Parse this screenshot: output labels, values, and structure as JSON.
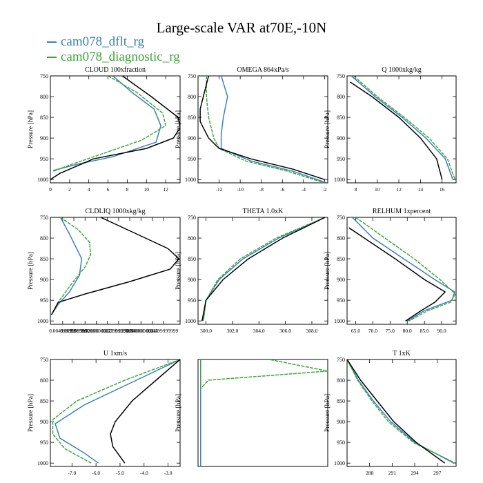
{
  "title": "Large-scale VAR at70E,-10N",
  "legend": [
    {
      "name": "cam078_dflt_rg",
      "color": "#3b7fb8"
    },
    {
      "name": "cam078_diagnostic_rg",
      "color": "#3aa83a"
    }
  ],
  "ref_color": "#000000",
  "chart_data": [
    {
      "type": "line",
      "title": "CLOUD  100xfraction",
      "ylabel": "Pressure [hPa]",
      "xlim": [
        0,
        13.5
      ],
      "ylim": [
        750,
        1008
      ],
      "xticks": [
        0,
        2,
        4,
        6,
        8,
        10,
        12
      ],
      "xtick_labels": [
        "0",
        "2",
        "4",
        "6",
        "8",
        "10",
        "12"
      ],
      "yticks": [
        750,
        800,
        850,
        900,
        950,
        1000
      ],
      "series": [
        {
          "name": "cam078_dflt_rg",
          "points": [
            [
              6.5,
              750
            ],
            [
              8.5,
              790
            ],
            [
              10.8,
              830
            ],
            [
              11.5,
              870
            ],
            [
              11.0,
              910
            ],
            [
              6.5,
              945
            ],
            [
              3.0,
              962
            ],
            [
              0.3,
              978
            ]
          ]
        },
        {
          "name": "cam078_diagnostic_rg",
          "points": [
            [
              6.0,
              750
            ],
            [
              9.0,
              790
            ],
            [
              11.7,
              840
            ],
            [
              12.0,
              870
            ],
            [
              9.5,
              905
            ],
            [
              4.5,
              945
            ],
            [
              2.0,
              965
            ],
            [
              0.3,
              980
            ]
          ]
        },
        {
          "name": "reference",
          "points": [
            [
              7.5,
              750
            ],
            [
              10.5,
              800
            ],
            [
              13.3,
              850
            ],
            [
              13.5,
              875
            ],
            [
              12.8,
              900
            ],
            [
              10.0,
              925
            ],
            [
              4.5,
              950
            ],
            [
              1.0,
              985
            ],
            [
              0.0,
              1000
            ]
          ]
        }
      ]
    },
    {
      "type": "line",
      "title": "OMEGA  864xPa/s",
      "ylabel": "Pressure [hPa]",
      "xlim": [
        -14,
        -1.7
      ],
      "ylim": [
        750,
        1008
      ],
      "xticks": [
        -12,
        -10,
        -8,
        -6,
        -4,
        -2
      ],
      "xtick_labels": [
        "-12",
        "-10",
        "-8",
        "-6",
        "-4",
        "-2"
      ],
      "yticks": [
        750,
        800,
        850,
        900,
        950,
        1000
      ],
      "series": [
        {
          "name": "cam078_dflt_rg",
          "points": [
            [
              -11.8,
              750
            ],
            [
              -11.2,
              800
            ],
            [
              -11.6,
              850
            ],
            [
              -11.8,
              890
            ],
            [
              -11.8,
              925
            ],
            [
              -9.0,
              955
            ],
            [
              -5.0,
              980
            ],
            [
              -1.8,
              1008
            ]
          ]
        },
        {
          "name": "cam078_diagnostic_rg",
          "points": [
            [
              -13.2,
              750
            ],
            [
              -13.2,
              800
            ],
            [
              -13.0,
              850
            ],
            [
              -12.5,
              900
            ],
            [
              -12.0,
              925
            ],
            [
              -9.5,
              955
            ],
            [
              -5.5,
              980
            ],
            [
              -2.0,
              1008
            ]
          ]
        },
        {
          "name": "reference",
          "points": [
            [
              -13.0,
              750
            ],
            [
              -13.8,
              830
            ],
            [
              -13.8,
              860
            ],
            [
              -13.0,
              900
            ],
            [
              -12.0,
              925
            ],
            [
              -9.0,
              950
            ],
            [
              -5.0,
              975
            ],
            [
              -2.0,
              1000
            ]
          ]
        }
      ]
    },
    {
      "type": "line",
      "title": "Q  1000xkg/kg",
      "ylabel": "Pressure [hPa]",
      "xlim": [
        7.2,
        17.3
      ],
      "ylim": [
        750,
        1008
      ],
      "xticks": [
        8,
        10,
        12,
        14,
        16
      ],
      "xtick_labels": [
        "8",
        "10",
        "12",
        "14",
        "16"
      ],
      "yticks": [
        750,
        800,
        850,
        900,
        950,
        1000
      ],
      "series": [
        {
          "name": "cam078_dflt_rg",
          "points": [
            [
              7.6,
              750
            ],
            [
              9.8,
              800
            ],
            [
              12.3,
              850
            ],
            [
              14.5,
              900
            ],
            [
              16.3,
              950
            ],
            [
              17.0,
              1000
            ]
          ]
        },
        {
          "name": "cam078_diagnostic_rg",
          "points": [
            [
              7.8,
              750
            ],
            [
              10.0,
              800
            ],
            [
              12.5,
              850
            ],
            [
              14.8,
              900
            ],
            [
              16.5,
              950
            ],
            [
              17.2,
              1000
            ]
          ]
        },
        {
          "name": "reference",
          "points": [
            [
              7.5,
              765
            ],
            [
              9.5,
              800
            ],
            [
              12.0,
              850
            ],
            [
              14.0,
              900
            ],
            [
              15.5,
              950
            ],
            [
              16.0,
              1000
            ]
          ]
        }
      ]
    },
    {
      "type": "line",
      "title": "CLDLIQ  1000xkg/kg",
      "ylabel": "Pressure [hPa]",
      "xlim": [
        -0.0005,
        0.0575
      ],
      "ylim": [
        750,
        1008
      ],
      "xticks": [
        0.005,
        0.01,
        0.015,
        0.02,
        0.025,
        0.03,
        0.035,
        0.04,
        0.045,
        0.05
      ],
      "xtick_labels": [
        "0.004999999",
        "0.009999999",
        "0.0150000001",
        "0.0200000001",
        "0.025",
        "0.0299999999",
        "0.0350000001",
        "0.0400000001",
        "0.045",
        "0.0499999999"
      ],
      "yticks": [
        750,
        800,
        850,
        900,
        950,
        1000
      ],
      "series": [
        {
          "name": "cam078_dflt_rg",
          "points": [
            [
              0.004,
              750
            ],
            [
              0.008,
              790
            ],
            [
              0.0135,
              850
            ],
            [
              0.0125,
              890
            ],
            [
              0.008,
              930
            ],
            [
              0.003,
              960
            ],
            [
              0.0,
              985
            ]
          ]
        },
        {
          "name": "cam078_diagnostic_rg",
          "points": [
            [
              0.004,
              750
            ],
            [
              0.012,
              780
            ],
            [
              0.017,
              810
            ],
            [
              0.0175,
              840
            ],
            [
              0.015,
              870
            ],
            [
              0.009,
              910
            ],
            [
              0.003,
              955
            ],
            [
              0.0,
              985
            ]
          ]
        },
        {
          "name": "reference",
          "points": [
            [
              0.022,
              750
            ],
            [
              0.038,
              790
            ],
            [
              0.052,
              825
            ],
            [
              0.057,
              850
            ],
            [
              0.053,
              875
            ],
            [
              0.035,
              905
            ],
            [
              0.015,
              935
            ],
            [
              0.003,
              955
            ],
            [
              0.0,
              985
            ]
          ]
        }
      ]
    },
    {
      "type": "line",
      "title": "THETA  1.0xK",
      "ylabel": "Pressure [hPa]",
      "xlim": [
        299.4,
        309.2
      ],
      "ylim": [
        750,
        1008
      ],
      "xticks": [
        300,
        302,
        304,
        306,
        308
      ],
      "xtick_labels": [
        "300.0",
        "302.0",
        "304.0",
        "306.0",
        "308.0"
      ],
      "yticks": [
        750,
        800,
        850,
        900,
        950,
        1000
      ],
      "series": [
        {
          "name": "cam078_dflt_rg",
          "points": [
            [
              309.0,
              750
            ],
            [
              305.5,
              800
            ],
            [
              302.8,
              850
            ],
            [
              301.0,
              900
            ],
            [
              300.0,
              950
            ],
            [
              299.8,
              1000
            ]
          ]
        },
        {
          "name": "cam078_diagnostic_rg",
          "points": [
            [
              309.0,
              750
            ],
            [
              305.3,
              800
            ],
            [
              302.6,
              850
            ],
            [
              300.9,
              900
            ],
            [
              300.0,
              950
            ],
            [
              299.8,
              1000
            ]
          ]
        },
        {
          "name": "reference",
          "points": [
            [
              309.0,
              750
            ],
            [
              305.8,
              800
            ],
            [
              303.2,
              850
            ],
            [
              301.3,
              900
            ],
            [
              300.0,
              950
            ],
            [
              299.7,
              1000
            ]
          ]
        }
      ]
    },
    {
      "type": "line",
      "title": "RELHUM  1xpercent",
      "ylabel": "Pressure [hPa]",
      "xlim": [
        62.5,
        94.2
      ],
      "ylim": [
        750,
        1008
      ],
      "xticks": [
        65,
        70,
        75,
        80,
        85,
        90
      ],
      "xtick_labels": [
        "65.0",
        "70.0",
        "75.0",
        "80.0",
        "85.0",
        "90.0"
      ],
      "yticks": [
        750,
        800,
        850,
        900,
        950,
        1000
      ],
      "series": [
        {
          "name": "cam078_dflt_rg",
          "points": [
            [
              64.0,
              750
            ],
            [
              70.0,
              800
            ],
            [
              79.0,
              850
            ],
            [
              88.0,
              900
            ],
            [
              93.8,
              930
            ],
            [
              93.0,
              950
            ],
            [
              85.0,
              975
            ],
            [
              80.0,
              1000
            ]
          ]
        },
        {
          "name": "cam078_diagnostic_rg",
          "points": [
            [
              65.0,
              750
            ],
            [
              73.5,
              800
            ],
            [
              82.0,
              850
            ],
            [
              89.5,
              900
            ],
            [
              94.0,
              935
            ],
            [
              92.5,
              955
            ],
            [
              86.0,
              975
            ],
            [
              80.5,
              1000
            ]
          ]
        },
        {
          "name": "reference",
          "points": [
            [
              63.0,
              775
            ],
            [
              67.5,
              800
            ],
            [
              76.5,
              850
            ],
            [
              85.0,
              900
            ],
            [
              91.0,
              930
            ],
            [
              88.0,
              955
            ],
            [
              84.0,
              975
            ],
            [
              79.5,
              1000
            ]
          ]
        }
      ]
    },
    {
      "type": "line",
      "title": "U  1xm/s",
      "ylabel": "Pressure [hPa]",
      "xlim": [
        -7.9,
        -2.5
      ],
      "ylim": [
        750,
        1008
      ],
      "xticks": [
        -7,
        -6,
        -5,
        -4,
        -3
      ],
      "xtick_labels": [
        "-7.0",
        "-6.0",
        "-5.0",
        "-4.0",
        "-3.0"
      ],
      "yticks": [
        750,
        800,
        850,
        900,
        950,
        1000
      ],
      "series": [
        {
          "name": "cam078_dflt_rg",
          "points": [
            [
              -2.5,
              750
            ],
            [
              -4.5,
              805
            ],
            [
              -6.5,
              860
            ],
            [
              -7.7,
              905
            ],
            [
              -7.5,
              940
            ],
            [
              -6.5,
              975
            ],
            [
              -5.9,
              1000
            ]
          ]
        },
        {
          "name": "cam078_diagnostic_rg",
          "points": [
            [
              -2.5,
              750
            ],
            [
              -4.8,
              800
            ],
            [
              -6.8,
              850
            ],
            [
              -7.8,
              895
            ],
            [
              -7.8,
              930
            ],
            [
              -7.3,
              965
            ],
            [
              -6.2,
              1000
            ]
          ]
        },
        {
          "name": "reference",
          "points": [
            [
              -2.5,
              750
            ],
            [
              -3.5,
              800
            ],
            [
              -4.5,
              850
            ],
            [
              -5.2,
              900
            ],
            [
              -5.4,
              930
            ],
            [
              -5.3,
              960
            ],
            [
              -4.8,
              1000
            ]
          ]
        }
      ]
    },
    {
      "type": "line",
      "title": "",
      "ylabel": "Pressure [hPa]",
      "xlim": [
        0,
        1
      ],
      "ylim": [
        750,
        1008
      ],
      "xticks": [],
      "xtick_labels": [],
      "yticks": [],
      "series": [
        {
          "name": "cam078_dflt_rg",
          "points": [
            [
              0.02,
              750
            ],
            [
              0.02,
              1008
            ]
          ]
        },
        {
          "name": "cam078_diagnostic_rg",
          "points": [
            [
              0.02,
              750
            ],
            [
              0.02,
              820
            ],
            [
              0.08,
              800
            ],
            [
              1.0,
              778
            ],
            [
              0.55,
              750
            ]
          ]
        }
      ]
    },
    {
      "type": "line",
      "title": "T  1xK",
      "ylabel": "Pressure [hPa]",
      "xlim": [
        285,
        299.5
      ],
      "ylim": [
        750,
        1008
      ],
      "xticks": [
        288,
        291,
        294,
        297
      ],
      "xtick_labels": [
        "288",
        "291",
        "294",
        "297"
      ],
      "yticks": [
        750,
        800,
        850,
        900,
        950,
        1000
      ],
      "series": [
        {
          "name": "cam078_dflt_rg",
          "points": [
            [
              285.0,
              750
            ],
            [
              286.5,
              800
            ],
            [
              288.5,
              850
            ],
            [
              290.8,
              900
            ],
            [
              294.0,
              950
            ],
            [
              299.2,
              1000
            ]
          ]
        },
        {
          "name": "cam078_diagnostic_rg",
          "points": [
            [
              285.0,
              750
            ],
            [
              286.4,
              800
            ],
            [
              288.3,
              850
            ],
            [
              290.5,
              900
            ],
            [
              293.8,
              950
            ],
            [
              299.4,
              1000
            ]
          ]
        },
        {
          "name": "reference",
          "points": [
            [
              285.0,
              750
            ],
            [
              286.8,
              800
            ],
            [
              289.0,
              850
            ],
            [
              291.2,
              900
            ],
            [
              294.2,
              950
            ],
            [
              298.0,
              1000
            ]
          ]
        }
      ]
    }
  ]
}
